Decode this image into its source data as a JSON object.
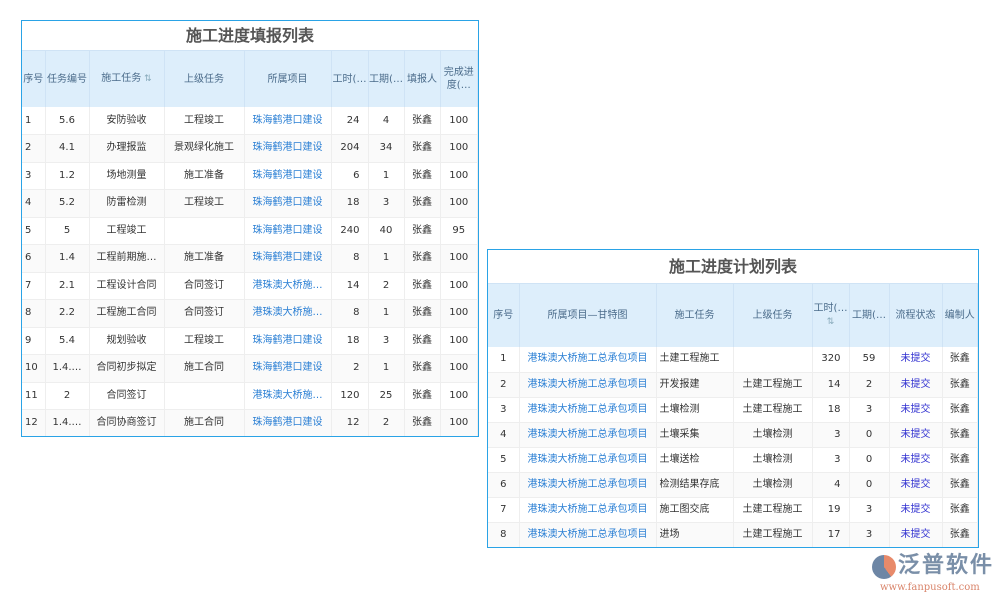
{
  "report": {
    "title": "施工进度填报列表",
    "headers": [
      "序号",
      "任务编号",
      "施工任务",
      "上级任务",
      "所属项目",
      "工时(…",
      "工期(…",
      "填报人",
      "完成进度(…"
    ],
    "rows": [
      [
        "1",
        "5.6",
        "安防验收",
        "工程竣工",
        "珠海鹤港口建设",
        "24",
        "4",
        "张鑫",
        "100"
      ],
      [
        "2",
        "4.1",
        "办理报监",
        "景观绿化施工",
        "珠海鹤港口建设",
        "204",
        "34",
        "张鑫",
        "100"
      ],
      [
        "3",
        "1.2",
        "场地测量",
        "施工准备",
        "珠海鹤港口建设",
        "6",
        "1",
        "张鑫",
        "100"
      ],
      [
        "4",
        "5.2",
        "防雷检测",
        "工程竣工",
        "珠海鹤港口建设",
        "18",
        "3",
        "张鑫",
        "100"
      ],
      [
        "5",
        "5",
        "工程竣工",
        "",
        "珠海鹤港口建设",
        "240",
        "40",
        "张鑫",
        "95"
      ],
      [
        "6",
        "1.4",
        "工程前期施…",
        "施工准备",
        "珠海鹤港口建设",
        "8",
        "1",
        "张鑫",
        "100"
      ],
      [
        "7",
        "2.1",
        "工程设计合同",
        "合同签订",
        "港珠澳大桥施…",
        "14",
        "2",
        "张鑫",
        "100"
      ],
      [
        "8",
        "2.2",
        "工程施工合同",
        "合同签订",
        "港珠澳大桥施…",
        "8",
        "1",
        "张鑫",
        "100"
      ],
      [
        "9",
        "5.4",
        "规划验收",
        "工程竣工",
        "珠海鹤港口建设",
        "18",
        "3",
        "张鑫",
        "100"
      ],
      [
        "10",
        "1.4.…",
        "合同初步拟定",
        "施工合同",
        "珠海鹤港口建设",
        "2",
        "1",
        "张鑫",
        "100"
      ],
      [
        "11",
        "2",
        "合同签订",
        "",
        "港珠澳大桥施…",
        "120",
        "25",
        "张鑫",
        "100"
      ],
      [
        "12",
        "1.4.…",
        "合同协商签订",
        "施工合同",
        "珠海鹤港口建设",
        "12",
        "2",
        "张鑫",
        "100"
      ]
    ]
  },
  "plan": {
    "title": "施工进度计划列表",
    "headers": [
      "序号",
      "所属项目—甘特图",
      "施工任务",
      "上级任务",
      "工时(…",
      "工期(…",
      "流程状态",
      "编制人"
    ],
    "rows": [
      [
        "1",
        "港珠澳大桥施工总承包项目",
        "土建工程施工",
        "",
        "320",
        "59",
        "未提交",
        "张鑫"
      ],
      [
        "2",
        "港珠澳大桥施工总承包项目",
        "开发报建",
        "土建工程施工",
        "14",
        "2",
        "未提交",
        "张鑫"
      ],
      [
        "3",
        "港珠澳大桥施工总承包项目",
        "土壤检测",
        "土建工程施工",
        "18",
        "3",
        "未提交",
        "张鑫"
      ],
      [
        "4",
        "港珠澳大桥施工总承包项目",
        "土壤采集",
        "土壤检测",
        "3",
        "0",
        "未提交",
        "张鑫"
      ],
      [
        "5",
        "港珠澳大桥施工总承包项目",
        "土壤送检",
        "土壤检测",
        "3",
        "0",
        "未提交",
        "张鑫"
      ],
      [
        "6",
        "港珠澳大桥施工总承包项目",
        "检测结果存底",
        "土壤检测",
        "4",
        "0",
        "未提交",
        "张鑫"
      ],
      [
        "7",
        "港珠澳大桥施工总承包项目",
        "施工图交底",
        "土建工程施工",
        "19",
        "3",
        "未提交",
        "张鑫"
      ],
      [
        "8",
        "港珠澳大桥施工总承包项目",
        "进场",
        "土建工程施工",
        "17",
        "3",
        "未提交",
        "张鑫"
      ]
    ]
  },
  "logo": {
    "text": "泛普软件",
    "url": "www.fanpusoft.com"
  }
}
